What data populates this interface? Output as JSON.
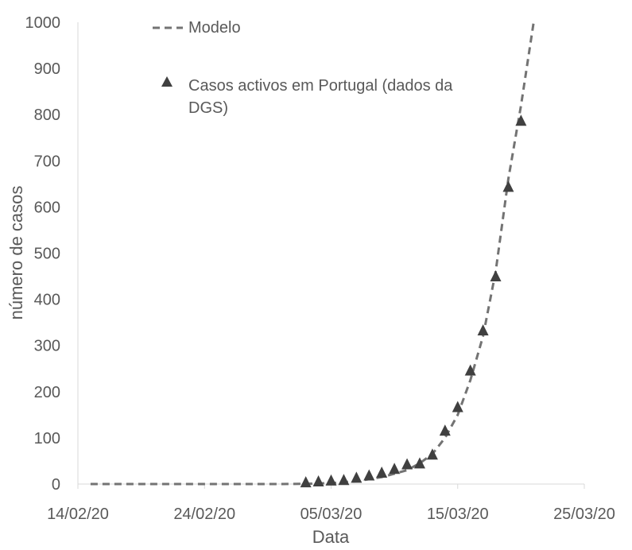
{
  "chart_data": {
    "type": "scatter",
    "title": "",
    "xlabel": "Data",
    "ylabel": "número de casos",
    "x_ticks": [
      "14/02/20",
      "24/02/20",
      "05/03/20",
      "15/03/20",
      "25/03/20"
    ],
    "xlim": [
      "2020-02-14",
      "2020-03-25"
    ],
    "ylim": [
      0,
      1000
    ],
    "y_ticks": [
      0,
      100,
      200,
      300,
      400,
      500,
      600,
      700,
      800,
      900,
      1000
    ],
    "grid": false,
    "legend_position": "top-left",
    "series": [
      {
        "name": "Modelo",
        "style": "dashed-line",
        "color": "#737373",
        "points": [
          {
            "x": "2020-02-15",
            "y": 0
          },
          {
            "x": "2020-02-20",
            "y": 0
          },
          {
            "x": "2020-02-25",
            "y": 0
          },
          {
            "x": "2020-03-01",
            "y": 0
          },
          {
            "x": "2020-03-03",
            "y": 0.5
          },
          {
            "x": "2020-03-05",
            "y": 2
          },
          {
            "x": "2020-03-07",
            "y": 6
          },
          {
            "x": "2020-03-09",
            "y": 15
          },
          {
            "x": "2020-03-11",
            "y": 30
          },
          {
            "x": "2020-03-12",
            "y": 45
          },
          {
            "x": "2020-03-13",
            "y": 65
          },
          {
            "x": "2020-03-14",
            "y": 100
          },
          {
            "x": "2020-03-15",
            "y": 150
          },
          {
            "x": "2020-03-16",
            "y": 225
          },
          {
            "x": "2020-03-17",
            "y": 320
          },
          {
            "x": "2020-03-18",
            "y": 460
          },
          {
            "x": "2020-03-19",
            "y": 660
          },
          {
            "x": "2020-03-20",
            "y": 820
          },
          {
            "x": "2020-03-21",
            "y": 1000
          }
        ]
      },
      {
        "name": "Casos activos em Portugal (dados da DGS)",
        "style": "triangle-marker",
        "color": "#404040",
        "points": [
          {
            "x": "2020-03-03",
            "y": 2
          },
          {
            "x": "2020-03-04",
            "y": 4
          },
          {
            "x": "2020-03-05",
            "y": 6
          },
          {
            "x": "2020-03-06",
            "y": 7
          },
          {
            "x": "2020-03-07",
            "y": 12
          },
          {
            "x": "2020-03-08",
            "y": 17
          },
          {
            "x": "2020-03-09",
            "y": 23
          },
          {
            "x": "2020-03-10",
            "y": 31
          },
          {
            "x": "2020-03-11",
            "y": 41
          },
          {
            "x": "2020-03-12",
            "y": 43
          },
          {
            "x": "2020-03-13",
            "y": 62
          },
          {
            "x": "2020-03-14",
            "y": 114
          },
          {
            "x": "2020-03-15",
            "y": 165
          },
          {
            "x": "2020-03-16",
            "y": 244
          },
          {
            "x": "2020-03-17",
            "y": 331
          },
          {
            "x": "2020-03-18",
            "y": 448
          },
          {
            "x": "2020-03-19",
            "y": 642
          },
          {
            "x": "2020-03-20",
            "y": 785
          }
        ]
      }
    ]
  }
}
